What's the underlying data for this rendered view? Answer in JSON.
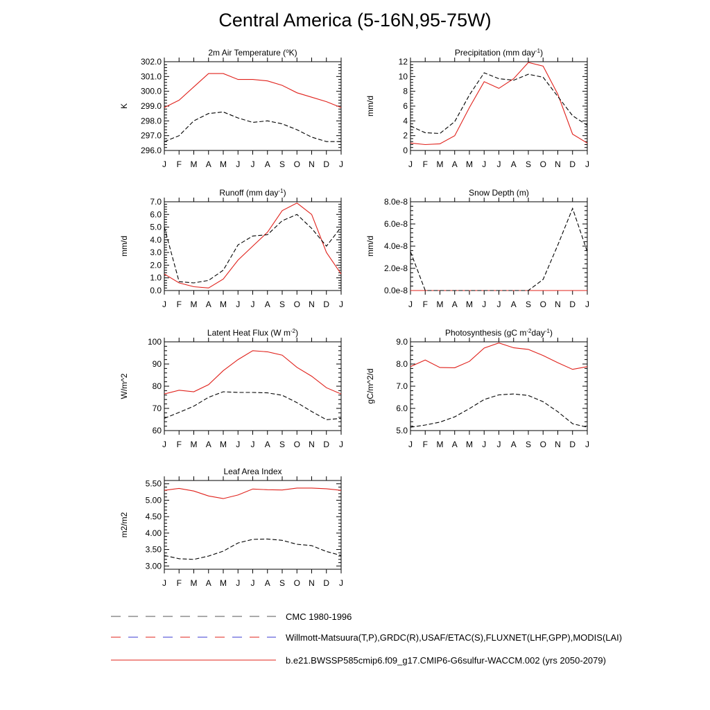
{
  "page": {
    "title": "Central America (5-16N,95-75W)"
  },
  "colors": {
    "model": "#e0201a",
    "obs": "#000000",
    "legend_obs_alt": "#3a3ad0"
  },
  "legend": [
    {
      "label": "CMC 1980-1996",
      "style": "dash-grey"
    },
    {
      "label": "Willmott-Matsuura(T,P),GRDC(R),USAF/ETAC(S),FLUXNET(LHF,GPP),MODIS(LAI)",
      "style": "dash-redblue"
    },
    {
      "label": "b.e21.BWSSP585cmip6.f09_g17.CMIP6-G6sulfur-WACCM.002 (yrs 2050-2079)",
      "style": "solid-red"
    }
  ],
  "chart_data": [
    {
      "type": "line",
      "title": "2m Air Temperature (°K)",
      "title_parts": [
        "2m Air Temperature (",
        "o",
        "K)"
      ],
      "ylabel": "K",
      "ylim": [
        296.0,
        302.0
      ],
      "yticks": [
        "296.0",
        "297.0",
        "298.0",
        "299.0",
        "300.0",
        "301.0",
        "302.0"
      ],
      "ytick_values": [
        296,
        297,
        298,
        299,
        300,
        301,
        302
      ],
      "categories": [
        "J",
        "F",
        "M",
        "A",
        "M",
        "J",
        "J",
        "A",
        "S",
        "O",
        "N",
        "D",
        "J"
      ],
      "series": [
        {
          "role": "model",
          "values": [
            298.9,
            299.4,
            300.3,
            301.2,
            301.2,
            300.8,
            300.8,
            300.7,
            300.4,
            299.9,
            299.6,
            299.3,
            298.9
          ]
        },
        {
          "role": "obs",
          "values": [
            296.6,
            297.0,
            298.0,
            298.5,
            298.6,
            298.2,
            297.9,
            298.0,
            297.8,
            297.4,
            296.9,
            296.6,
            296.6
          ]
        }
      ]
    },
    {
      "type": "line",
      "title": "Precipitation (mm day-1)",
      "title_parts": [
        "Precipitation (mm day",
        "-1",
        ")"
      ],
      "ylabel": "mm/d",
      "ylim": [
        0,
        12
      ],
      "yticks": [
        "0",
        "2",
        "4",
        "6",
        "8",
        "10",
        "12"
      ],
      "ytick_values": [
        0,
        2,
        4,
        6,
        8,
        10,
        12
      ],
      "categories": [
        "J",
        "F",
        "M",
        "A",
        "M",
        "J",
        "J",
        "A",
        "S",
        "O",
        "N",
        "D",
        "J"
      ],
      "series": [
        {
          "role": "model",
          "values": [
            1.0,
            0.8,
            0.9,
            2.0,
            5.8,
            9.3,
            8.4,
            9.7,
            11.9,
            11.4,
            7.6,
            2.2,
            1.0
          ]
        },
        {
          "role": "obs",
          "values": [
            3.3,
            2.4,
            2.3,
            3.9,
            7.5,
            10.5,
            9.7,
            9.5,
            10.3,
            9.9,
            7.3,
            4.7,
            3.4
          ]
        }
      ]
    },
    {
      "type": "line",
      "title": "Runoff (mm day-1)",
      "title_parts": [
        "Runoff (mm day",
        "-1",
        ")"
      ],
      "ylabel": "mm/d",
      "ylim": [
        0,
        7.0
      ],
      "yticks": [
        "0.0",
        "1.0",
        "2.0",
        "3.0",
        "4.0",
        "5.0",
        "6.0",
        "7.0"
      ],
      "ytick_values": [
        0,
        1,
        2,
        3,
        4,
        5,
        6,
        7
      ],
      "categories": [
        "J",
        "F",
        "M",
        "A",
        "M",
        "J",
        "J",
        "A",
        "S",
        "O",
        "N",
        "D",
        "J"
      ],
      "series": [
        {
          "role": "model",
          "values": [
            1.3,
            0.6,
            0.3,
            0.2,
            0.9,
            2.4,
            3.5,
            4.6,
            6.3,
            6.9,
            6.0,
            3.0,
            1.3
          ]
        },
        {
          "role": "obs",
          "values": [
            5.0,
            0.7,
            0.6,
            0.8,
            1.6,
            3.6,
            4.3,
            4.4,
            5.5,
            6.0,
            4.9,
            3.5,
            5.0
          ]
        }
      ]
    },
    {
      "type": "line",
      "title": "Snow Depth (m)",
      "title_parts": [
        "Snow Depth (m)",
        "",
        ""
      ],
      "ylabel": "mm/d",
      "ylim": [
        0,
        8e-08
      ],
      "yticks": [
        "0.0e-8",
        "2.0e-8",
        "4.0e-8",
        "6.0e-8",
        "8.0e-8"
      ],
      "ytick_values": [
        0,
        2e-08,
        4e-08,
        6e-08,
        8e-08
      ],
      "categories": [
        "J",
        "F",
        "M",
        "A",
        "M",
        "J",
        "J",
        "A",
        "S",
        "O",
        "N",
        "D",
        "J"
      ],
      "series": [
        {
          "role": "model",
          "values": [
            0,
            0,
            0,
            0,
            0,
            0,
            0,
            0,
            0,
            0,
            0,
            0,
            0
          ]
        },
        {
          "role": "obs",
          "values": [
            3.5e-08,
            0,
            0,
            0,
            0,
            0,
            0,
            0,
            0,
            1e-08,
            4.1e-08,
            7.4e-08,
            3.5e-08
          ]
        }
      ]
    },
    {
      "type": "line",
      "title": "Latent Heat Flux (W m-2)",
      "title_parts": [
        "Latent Heat Flux (W m",
        "-2",
        ")"
      ],
      "ylabel": "W/m^2",
      "ylim": [
        60,
        100
      ],
      "yticks": [
        "60",
        "70",
        "80",
        "90",
        "100"
      ],
      "ytick_values": [
        60,
        70,
        80,
        90,
        100
      ],
      "categories": [
        "J",
        "F",
        "M",
        "A",
        "M",
        "J",
        "J",
        "A",
        "S",
        "O",
        "N",
        "D",
        "J"
      ],
      "series": [
        {
          "role": "model",
          "values": [
            76.5,
            78.2,
            77.5,
            80.7,
            87.0,
            92.0,
            96.0,
            95.5,
            94.0,
            88.5,
            84.5,
            79.3,
            76.5
          ]
        },
        {
          "role": "obs",
          "values": [
            65.5,
            68.2,
            71.0,
            75.0,
            77.5,
            77.2,
            77.2,
            77.0,
            75.9,
            72.6,
            68.6,
            64.9,
            65.5
          ]
        }
      ]
    },
    {
      "type": "line",
      "title": "Photosynthesis (gC m-2day-1)",
      "title_parts": [
        "Photosynthesis (gC m",
        "-2",
        "day",
        "-1",
        ")"
      ],
      "ylabel": "gC/m^2/d",
      "ylim": [
        5.0,
        9.0
      ],
      "yticks": [
        "5.0",
        "6.0",
        "7.0",
        "8.0",
        "9.0"
      ],
      "ytick_values": [
        5,
        6,
        7,
        8,
        9
      ],
      "categories": [
        "J",
        "F",
        "M",
        "A",
        "M",
        "J",
        "J",
        "A",
        "S",
        "O",
        "N",
        "D",
        "J"
      ],
      "series": [
        {
          "role": "model",
          "values": [
            7.88,
            8.18,
            7.84,
            7.83,
            8.12,
            8.72,
            8.95,
            8.73,
            8.66,
            8.38,
            8.06,
            7.76,
            7.88
          ]
        },
        {
          "role": "obs",
          "values": [
            5.15,
            5.25,
            5.38,
            5.62,
            5.99,
            6.4,
            6.61,
            6.65,
            6.58,
            6.3,
            5.85,
            5.31,
            5.15
          ]
        }
      ]
    },
    {
      "type": "line",
      "title": "Leaf Area Index",
      "title_parts": [
        "Leaf Area Index",
        "",
        ""
      ],
      "ylabel": "m2/m2",
      "ylim": [
        2.9,
        5.6
      ],
      "yticks": [
        "3.00",
        "3.50",
        "4.00",
        "4.50",
        "5.00",
        "5.50"
      ],
      "ytick_values": [
        3.0,
        3.5,
        4.0,
        4.5,
        5.0,
        5.5
      ],
      "categories": [
        "J",
        "F",
        "M",
        "A",
        "M",
        "J",
        "J",
        "A",
        "S",
        "O",
        "N",
        "D",
        "J"
      ],
      "series": [
        {
          "role": "model",
          "values": [
            5.3,
            5.36,
            5.28,
            5.13,
            5.05,
            5.16,
            5.34,
            5.32,
            5.31,
            5.37,
            5.37,
            5.35,
            5.3
          ]
        },
        {
          "role": "obs",
          "values": [
            3.32,
            3.22,
            3.2,
            3.3,
            3.45,
            3.7,
            3.81,
            3.82,
            3.78,
            3.66,
            3.62,
            3.44,
            3.32
          ]
        }
      ]
    }
  ]
}
